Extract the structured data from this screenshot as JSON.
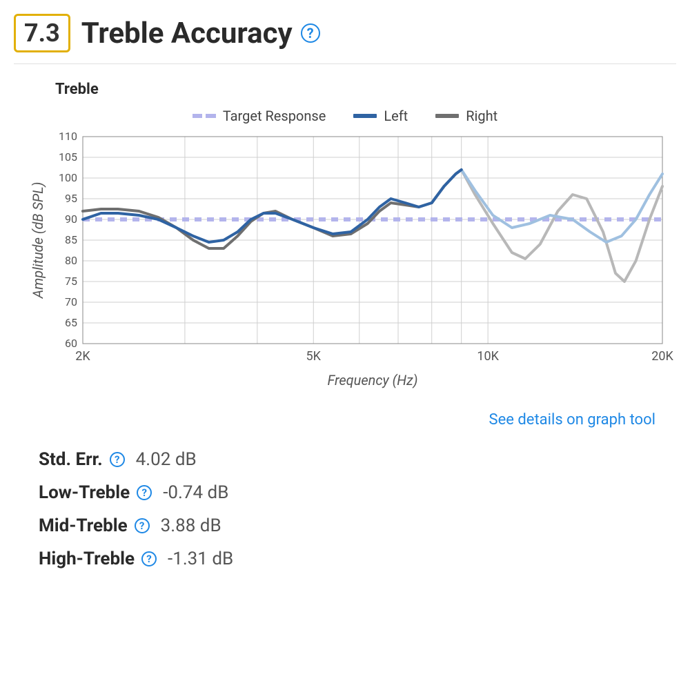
{
  "header": {
    "score": "7.3",
    "score_border_color": "#e2b007",
    "score_text_color": "#333333",
    "title": "Treble Accuracy",
    "help_color": "#1e88e5"
  },
  "chart": {
    "type": "line",
    "title": "Treble",
    "xlabel": "Frequency (Hz)",
    "ylabel": "Amplitude (dB SPL)",
    "xscale": "log",
    "xlim": [
      2000,
      20000
    ],
    "ylim": [
      60,
      110
    ],
    "ytick_step": 5,
    "xtick_positions": [
      2000,
      5000,
      10000,
      20000
    ],
    "xtick_labels": [
      "2K",
      "5K",
      "10K",
      "20K"
    ],
    "x_gridlines": [
      2000,
      3000,
      4000,
      5000,
      6000,
      7000,
      8000,
      9000,
      10000,
      20000
    ],
    "background_color": "#ffffff",
    "grid_color": "#cfcfcf",
    "axis_color": "#888888",
    "label_color": "#555555",
    "title_fontsize": 22,
    "label_fontsize": 20,
    "tick_fontsize": 16,
    "line_width": 4,
    "legend": [
      {
        "label": "Target Response",
        "color": "#b3b4ec",
        "style": "dashed"
      },
      {
        "label": "Left",
        "color": "#2f63a3",
        "style": "solid"
      },
      {
        "label": "Right",
        "color": "#6f6f6f",
        "style": "solid"
      }
    ],
    "fade_start_x": 9000,
    "fade_left_color": "#9fc0e0",
    "fade_right_color": "#b8b8b8",
    "series": {
      "target": {
        "color": "#b3b4ec",
        "dash": "10,8",
        "points": [
          [
            2000,
            90
          ],
          [
            20000,
            90
          ]
        ]
      },
      "left": {
        "color": "#2f63a3",
        "points": [
          [
            2000,
            90
          ],
          [
            2150,
            91.5
          ],
          [
            2300,
            91.5
          ],
          [
            2500,
            91
          ],
          [
            2700,
            90
          ],
          [
            2900,
            88
          ],
          [
            3100,
            86
          ],
          [
            3300,
            84.5
          ],
          [
            3500,
            85
          ],
          [
            3700,
            87
          ],
          [
            3900,
            90
          ],
          [
            4100,
            91.5
          ],
          [
            4300,
            91.5
          ],
          [
            4600,
            90
          ],
          [
            5000,
            88
          ],
          [
            5400,
            86.5
          ],
          [
            5800,
            87
          ],
          [
            6200,
            90
          ],
          [
            6500,
            93
          ],
          [
            6800,
            95
          ],
          [
            7200,
            94
          ],
          [
            7600,
            93
          ],
          [
            8000,
            94
          ],
          [
            8400,
            98
          ],
          [
            8800,
            101
          ],
          [
            9000,
            102
          ],
          [
            9500,
            97
          ],
          [
            10200,
            91
          ],
          [
            11000,
            88
          ],
          [
            11800,
            89
          ],
          [
            12800,
            91
          ],
          [
            14000,
            90
          ],
          [
            15000,
            87
          ],
          [
            16000,
            84.5
          ],
          [
            17000,
            86
          ],
          [
            18000,
            90
          ],
          [
            19000,
            96
          ],
          [
            20000,
            101
          ]
        ]
      },
      "right": {
        "color": "#6f6f6f",
        "points": [
          [
            2000,
            92
          ],
          [
            2150,
            92.5
          ],
          [
            2300,
            92.5
          ],
          [
            2500,
            92
          ],
          [
            2700,
            90.5
          ],
          [
            2900,
            88
          ],
          [
            3100,
            85
          ],
          [
            3300,
            83
          ],
          [
            3500,
            83
          ],
          [
            3700,
            86
          ],
          [
            3900,
            89.5
          ],
          [
            4100,
            91.5
          ],
          [
            4300,
            92
          ],
          [
            4600,
            90
          ],
          [
            5000,
            88
          ],
          [
            5400,
            86
          ],
          [
            5800,
            86.5
          ],
          [
            6200,
            89
          ],
          [
            6500,
            92
          ],
          [
            6800,
            94
          ],
          [
            7200,
            93.5
          ],
          [
            7600,
            93
          ],
          [
            8000,
            94
          ],
          [
            8400,
            98
          ],
          [
            8800,
            101
          ],
          [
            9000,
            102
          ],
          [
            9500,
            96
          ],
          [
            10200,
            89
          ],
          [
            11000,
            82
          ],
          [
            11600,
            80.5
          ],
          [
            12300,
            84
          ],
          [
            13200,
            92
          ],
          [
            14000,
            96
          ],
          [
            14800,
            95
          ],
          [
            15800,
            87
          ],
          [
            16600,
            77
          ],
          [
            17200,
            75
          ],
          [
            18000,
            80
          ],
          [
            19000,
            90
          ],
          [
            20000,
            98
          ]
        ]
      }
    }
  },
  "details_link": {
    "text": "See details on graph tool",
    "color": "#1e88e5"
  },
  "stats": [
    {
      "label": "Std. Err.",
      "value": "4.02 dB"
    },
    {
      "label": "Low-Treble",
      "value": "-0.74 dB"
    },
    {
      "label": "Mid-Treble",
      "value": "3.88 dB"
    },
    {
      "label": "High-Treble",
      "value": "-1.31 dB"
    }
  ]
}
